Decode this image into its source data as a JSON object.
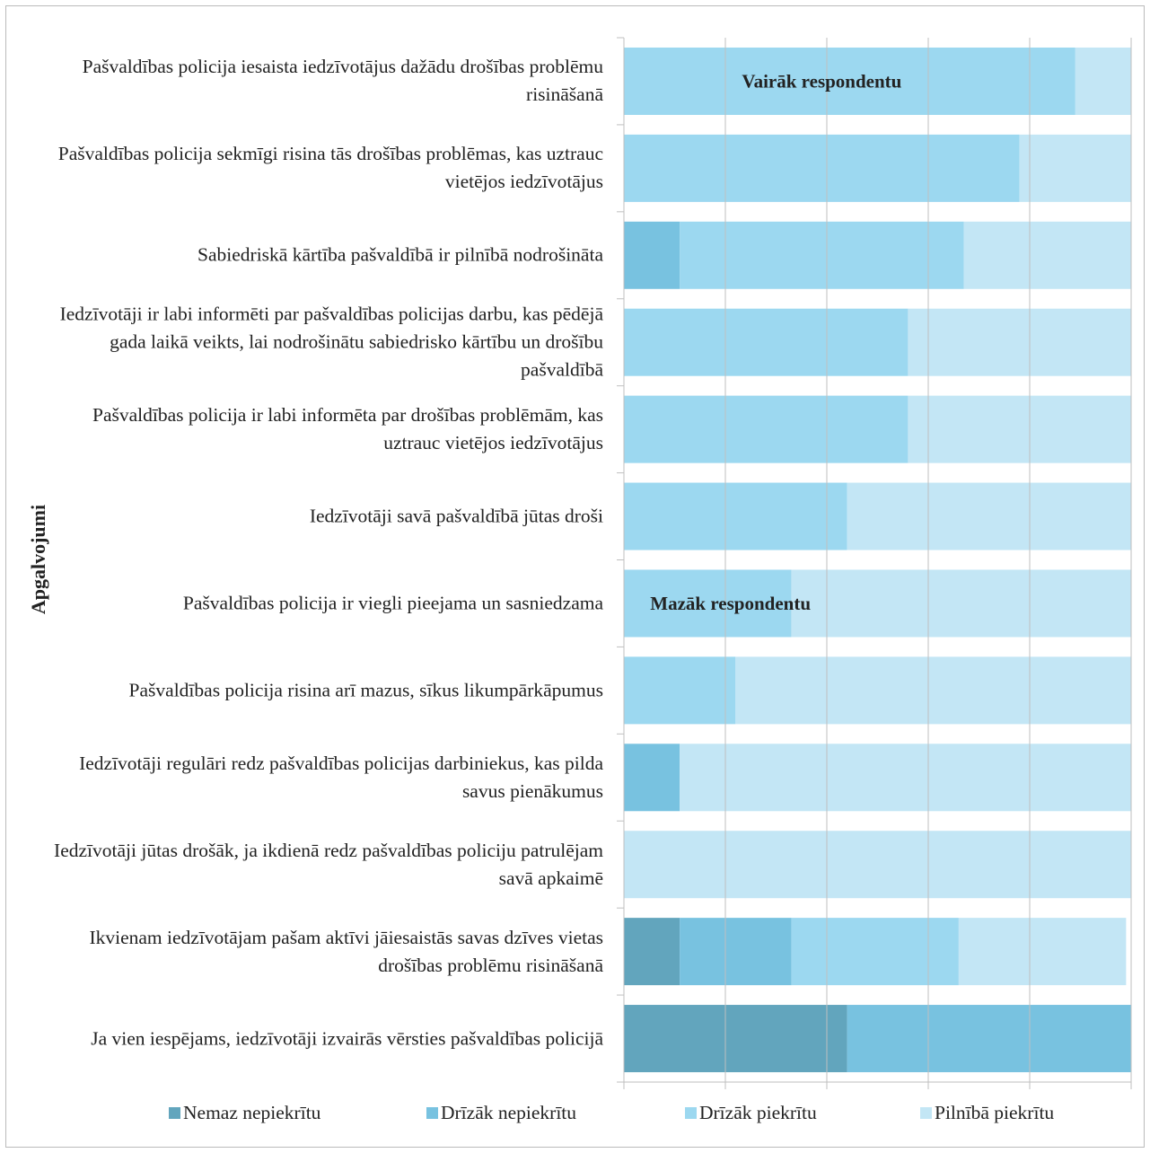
{
  "chart_data": {
    "type": "stacked-bar-horizontal",
    "y_label": "Apgalvojumi",
    "categories": [
      "Pašvaldības policija iesaista iedzīvotājus dažādu drošības problēmu risināšanā",
      "Pašvaldības policija sekmīgi risina tās drošības problēmas, kas uztrauc vietējos iedzīvotājus",
      "Sabiedriskā kārtība pašvaldībā ir pilnībā nodrošināta",
      "Iedzīvotāji ir labi informēti par pašvaldības policijas darbu, kas pēdējā gada laikā veikts, lai nodrošinātu sabiedrisko kārtību un drošību pašvaldībā",
      "Pašvaldības policija ir labi informēta par drošības problēmām, kas uztrauc vietējos iedzīvotājus",
      "Iedzīvotāji savā pašvaldībā jūtas droši",
      "Pašvaldības policija ir viegli pieejama un sasniedzama",
      "Pašvaldības policija risina arī mazus, sīkus likumpārkāpumus",
      "Iedzīvotāji regulāri redz pašvaldības policijas darbiniekus, kas pilda savus pienākumus",
      "Iedzīvotāji jūtas drošāk, ja ikdienā redz pašvaldības policiju patrulējam savā apkaimē",
      "Ikvienam iedzīvotājam pašam aktīvi jāiesaistās savas dzīves vietas drošības problēmu risināšanā",
      "Ja vien iespējams, iedzīvotāji izvairās vērsties pašvaldības policijā"
    ],
    "series": [
      {
        "name": "Nemaz nepiekrītu",
        "color": "#62a5bd",
        "values": [
          0,
          0,
          0,
          0,
          0,
          0,
          0,
          0,
          0,
          0,
          11,
          44
        ]
      },
      {
        "name": "Drīzāk nepiekrītu",
        "color": "#78c2e0",
        "values": [
          0,
          0,
          11,
          0,
          0,
          0,
          0,
          0,
          11,
          0,
          22,
          56
        ]
      },
      {
        "name": "Drīzāk piekrītu",
        "color": "#9cd8f0",
        "values": [
          89,
          78,
          56,
          56,
          56,
          44,
          33,
          22,
          0,
          0,
          33,
          0
        ]
      },
      {
        "name": "Pilnībā piekrītu",
        "color": "#c3e6f5",
        "values": [
          11,
          22,
          33,
          44,
          44,
          56,
          67,
          78,
          89,
          100,
          33,
          0
        ]
      }
    ],
    "annotations": [
      {
        "text": "Vairāk respondentu",
        "category": 0,
        "x": 39
      },
      {
        "text": "Mazāk respondentu",
        "category": 6,
        "x": 21
      }
    ],
    "xlim": [
      0,
      100
    ],
    "xticks": [
      0,
      20,
      40,
      60,
      80,
      100
    ],
    "grid": true,
    "legend": "bottom"
  }
}
